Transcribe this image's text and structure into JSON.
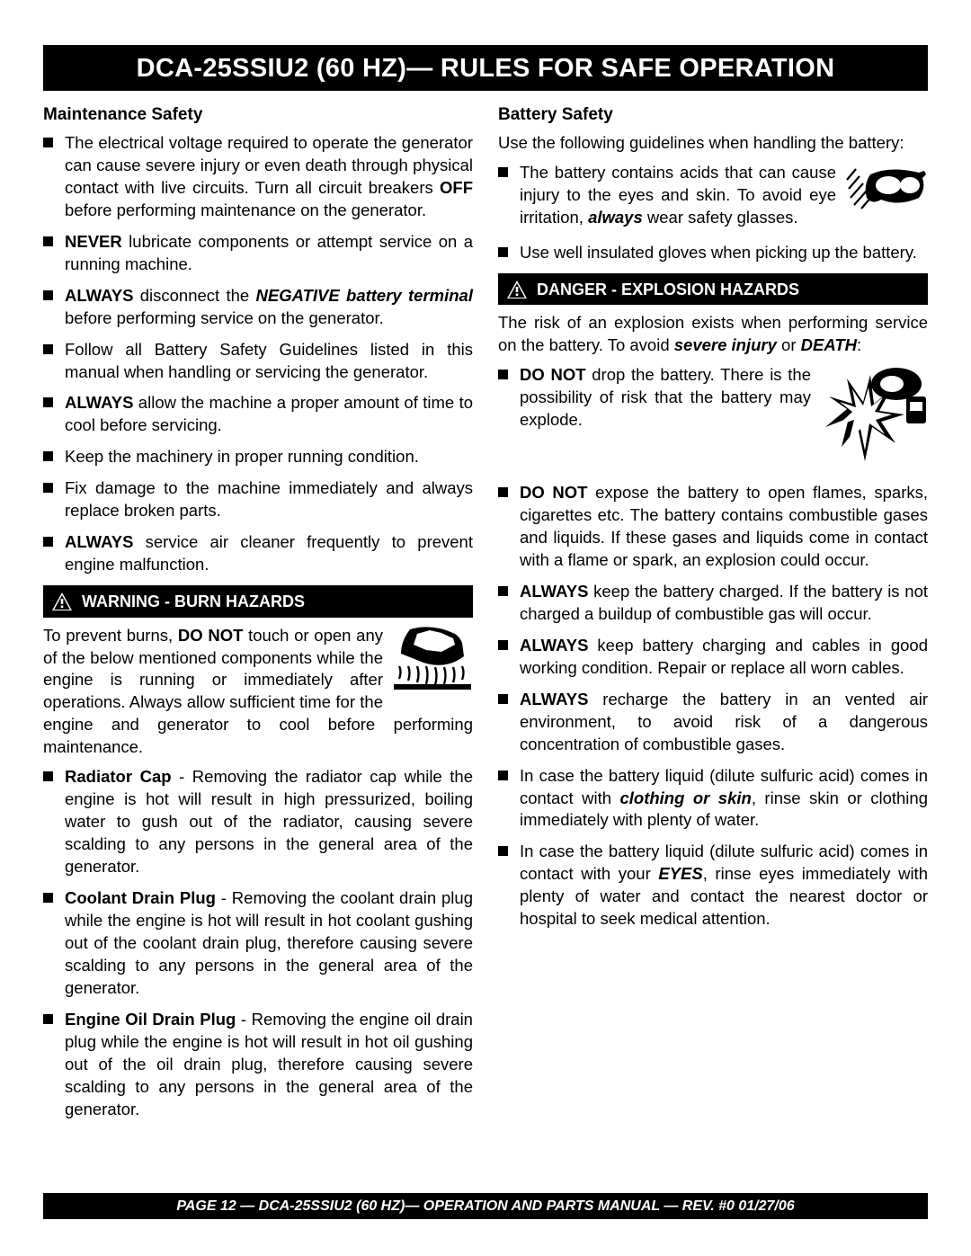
{
  "page_title": "DCA-25SSIU2 (60 HZ)— RULES FOR SAFE OPERATION",
  "footer": "PAGE 12 — DCA-25SSIU2 (60 HZ)—  OPERATION AND PARTS  MANUAL — REV. #0   01/27/06",
  "colors": {
    "header_bg": "#000000",
    "header_fg": "#ffffff",
    "body_bg": "#ffffff",
    "text": "#000000"
  },
  "left": {
    "maintenance": {
      "heading": "Maintenance Safety",
      "items": [
        {
          "pre": "The electrical voltage required to operate the generator can cause severe injury or even death through physical contact with live circuits. Turn all  circuit breakers ",
          "b": "OFF",
          "post": " before performing maintenance on the generator."
        },
        {
          "b": "NEVER",
          "post": " lubricate components or attempt service on a running machine."
        },
        {
          "b": "ALWAYS",
          "mid": " disconnect the ",
          "bi": "NEGATIVE battery terminal",
          "post": " before performing service on the generator."
        },
        {
          "pre": "Follow all Battery Safety Guidelines listed in this manual when handling or servicing the generator."
        },
        {
          "b": "ALWAYS",
          "post": " allow the machine a proper amount of time to cool before servicing."
        },
        {
          "pre": "Keep the machinery in proper running condition."
        },
        {
          "pre": "Fix damage to the machine immediately and always replace broken parts."
        },
        {
          "b": "ALWAYS",
          "post": " service air cleaner frequently to prevent engine malfunction."
        }
      ]
    },
    "burn": {
      "alert": "WARNING - BURN HAZARDS",
      "intro_pre": "To prevent burns, ",
      "intro_b": "DO NOT",
      "intro_post": " touch or open any of the below mentioned components while the engine is running or immediately after operations. Always allow sufficient time for the engine and generator to cool before performing maintenance.",
      "items": [
        {
          "b": "Radiator Cap",
          "post": " - Removing the radiator cap while the engine is hot will result in high pressurized, boiling water to gush out of the radiator, causing  severe scalding to any persons in the general area of the generator."
        },
        {
          "b": "Coolant Drain Plug",
          "post": " - Removing the coolant drain plug while the engine is hot will result in hot coolant gushing out of the coolant drain plug, therefore causing severe scalding to any persons in the general area of the generator."
        },
        {
          "b": "Engine Oil Drain Plug",
          "post": " - Removing the engine oil drain plug  while the engine is hot will result in hot oil gushing out of the oil drain plug, therefore causing severe scalding to any persons in the general area of the generator."
        }
      ]
    }
  },
  "right": {
    "battery": {
      "heading": "Battery Safety",
      "intro": "Use the following guidelines when handling the battery:",
      "items": [
        {
          "pre": "The battery contains acids that can cause injury to the eyes and skin. To avoid eye irritation, ",
          "bi": "always",
          "post": " wear safety glasses.",
          "icon": "goggles"
        },
        {
          "pre": "Use well insulated gloves when picking up the battery."
        }
      ]
    },
    "explosion": {
      "alert": "DANGER - EXPLOSION HAZARDS",
      "intro_pre": "The risk of an explosion exists when performing service on the battery. To avoid ",
      "intro_bi1": "severe injury",
      "intro_mid": " or ",
      "intro_bi2": "DEATH",
      "intro_post": ":",
      "items": [
        {
          "b": "DO NOT",
          "post": " drop the battery. There is the possibility of risk that the battery may explode.",
          "icon": "explosion"
        },
        {
          "b": "DO NOT",
          "post": " expose the battery to open flames, sparks, cigarettes etc. The battery contains combustible gases and liquids. If these gases and liquids come in contact with a flame or spark, an explosion could occur."
        },
        {
          "b": "ALWAYS",
          "post": " keep the battery charged. If the battery is not charged a buildup of combustible gas will occur."
        },
        {
          "b": "ALWAYS",
          "post": " keep battery charging and cables in good working condition. Repair or replace all worn cables."
        },
        {
          "b": "ALWAYS",
          "post": " recharge the battery in an vented air environment, to avoid risk of a dangerous concentration of combustible gases."
        },
        {
          "pre": "In case the battery liquid (dilute sulfuric acid) comes in contact with ",
          "bi": "clothing or skin",
          "post": ", rinse skin or clothing immediately with plenty of water."
        },
        {
          "pre": "In case the battery liquid (dilute sulfuric acid)  comes in contact with your ",
          "bi": "EYES",
          "post": ", rinse eyes immediately with plenty of water and contact the nearest doctor or hospital to seek medical attention."
        }
      ]
    }
  }
}
